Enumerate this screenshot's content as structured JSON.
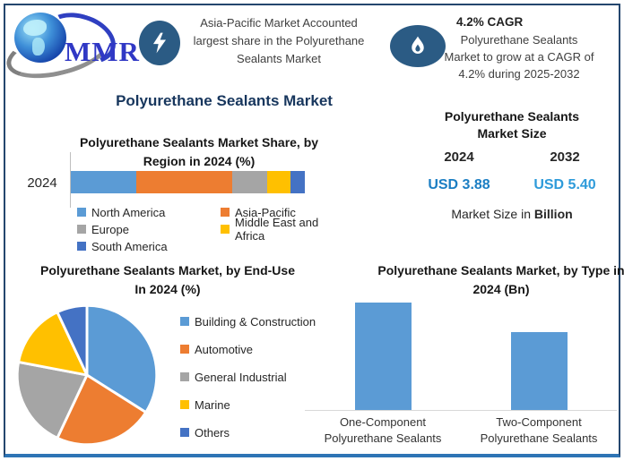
{
  "logo": {
    "text": "MMR",
    "icon": "globe-icon"
  },
  "header": {
    "highlight1": {
      "icon": "lightning-icon",
      "lines": [
        "Asia-Pacific Market Accounted",
        "largest share in the Polyurethane",
        "Sealants Market"
      ]
    },
    "highlight2": {
      "icon": "flame-icon",
      "title": "4.2% CAGR",
      "lines": [
        "Polyurethane Sealants",
        "Market to grow at a CAGR of",
        "4.2% during 2025-2032"
      ]
    }
  },
  "main_title": "Polyurethane Sealants Market",
  "market_size": {
    "title_lines": [
      "Polyurethane Sealants",
      "Market Size"
    ],
    "years": [
      "2024",
      "2032"
    ],
    "values": [
      "USD 3.88",
      "USD 5.40"
    ],
    "value_colors": [
      "#1B7EC3",
      "#2E9BDA"
    ],
    "note_prefix": "Market Size in ",
    "note_bold": "Billion"
  },
  "colors": {
    "title_navy": "#17365D",
    "icon_circle_blue": "#2B5B84",
    "border_blue": "#24466E",
    "palette": [
      "#5B9BD5",
      "#ED7D31",
      "#A5A5A5",
      "#FFC000",
      "#4472C4"
    ]
  },
  "chart_data": [
    {
      "id": "region_share",
      "type": "bar",
      "subtype": "stacked-horizontal",
      "title": "Polyurethane Sealants Market Share, by Region in 2024 (%)",
      "title_lines": [
        "Polyurethane Sealants Market Share, by",
        "Region in 2024 (%)"
      ],
      "categories": [
        "2024"
      ],
      "series": [
        {
          "name": "North America",
          "values": [
            28
          ],
          "color": "#5B9BD5"
        },
        {
          "name": "Asia-Pacific",
          "values": [
            41
          ],
          "color": "#ED7D31"
        },
        {
          "name": "Europe",
          "values": [
            15
          ],
          "color": "#A5A5A5"
        },
        {
          "name": "Middle East and Africa",
          "values": [
            10
          ],
          "color": "#FFC000"
        },
        {
          "name": "South America",
          "values": [
            6
          ],
          "color": "#4472C4"
        }
      ],
      "unit": "%",
      "xlim": [
        0,
        100
      ],
      "grid": false,
      "legend_position": "bottom"
    },
    {
      "id": "end_use_2024",
      "type": "pie",
      "title": "Polyurethane Sealants Market, by End-Use In 2024 (%)",
      "title_lines": [
        "Polyurethane Sealants Market, by End-Use",
        "In 2024 (%)"
      ],
      "labels": [
        "Building & Construction",
        "Automotive",
        "General Industrial",
        "Marine",
        "Others"
      ],
      "values": [
        34,
        23,
        21,
        15,
        7
      ],
      "colors": [
        "#5B9BD5",
        "#ED7D31",
        "#A5A5A5",
        "#FFC000",
        "#4472C4"
      ],
      "unit": "%",
      "start_angle_deg": 0,
      "direction": "clockwise",
      "legend_position": "right"
    },
    {
      "id": "by_type_2024",
      "type": "bar",
      "title": "Polyurethane Sealants Market, by Type in 2024 (Bn)",
      "title_lines": [
        "Polyurethane Sealants Market, by Type in",
        "2024 (Bn)"
      ],
      "categories": [
        [
          "One-Component",
          "Polyurethane Sealants"
        ],
        [
          "Two-Component",
          "Polyurethane Sealants"
        ]
      ],
      "values": [
        2.25,
        1.63
      ],
      "values_estimated_from_bar_heights": true,
      "unit": "Bn",
      "ylim": [
        0,
        2.4
      ],
      "bar_color": "#5B9BD5",
      "grid": false,
      "value_labels_shown": false
    }
  ]
}
